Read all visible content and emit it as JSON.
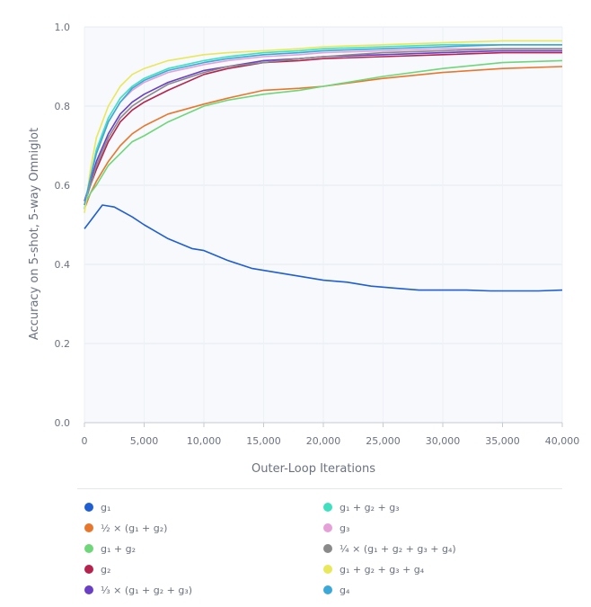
{
  "chart_data": {
    "type": "line",
    "xlabel": "Outer-Loop Iterations",
    "ylabel": "Accuracy on 5-shot, 5-way Omniglot",
    "xlim": [
      0,
      40000
    ],
    "ylim": [
      0.0,
      1.0
    ],
    "x_ticks": [
      "0",
      "5,000",
      "10,000",
      "15,000",
      "20,000",
      "25,000",
      "30,000",
      "35,000",
      "40,000"
    ],
    "y_ticks": [
      "0.0",
      "0.2",
      "0.4",
      "0.6",
      "0.8",
      "1.0"
    ],
    "grid": true,
    "legend_position": "below",
    "series": [
      {
        "name": "g₁",
        "color": "#1f5fd1",
        "x": [
          0,
          500,
          1500,
          2500,
          4000,
          5000,
          7000,
          9000,
          10000,
          12000,
          14000,
          16000,
          18000,
          20000,
          22000,
          24000,
          26000,
          28000,
          30000,
          32000,
          34000,
          36000,
          38000,
          40000
        ],
        "y": [
          0.49,
          0.51,
          0.55,
          0.545,
          0.52,
          0.5,
          0.465,
          0.44,
          0.435,
          0.41,
          0.39,
          0.38,
          0.37,
          0.36,
          0.355,
          0.345,
          0.34,
          0.335,
          0.335,
          0.335,
          0.333,
          0.333,
          0.333,
          0.335
        ]
      },
      {
        "name": "½ × (g₁ + g₂)",
        "color": "#e8772e",
        "x": [
          0,
          500,
          1000,
          2000,
          3000,
          4000,
          5000,
          7000,
          10000,
          12000,
          15000,
          18000,
          20000,
          25000,
          30000,
          35000,
          40000
        ],
        "y": [
          0.54,
          0.58,
          0.61,
          0.66,
          0.7,
          0.73,
          0.75,
          0.78,
          0.805,
          0.82,
          0.84,
          0.845,
          0.85,
          0.87,
          0.885,
          0.895,
          0.9
        ]
      },
      {
        "name": "g₁ + g₂",
        "color": "#6fd67a",
        "x": [
          0,
          500,
          1000,
          2000,
          3000,
          4000,
          5000,
          7000,
          10000,
          12000,
          15000,
          18000,
          20000,
          25000,
          30000,
          35000,
          40000
        ],
        "y": [
          0.55,
          0.58,
          0.6,
          0.65,
          0.68,
          0.71,
          0.725,
          0.76,
          0.8,
          0.815,
          0.83,
          0.84,
          0.85,
          0.875,
          0.895,
          0.91,
          0.915
        ]
      },
      {
        "name": "g₂",
        "color": "#b5244f",
        "x": [
          0,
          500,
          1000,
          2000,
          3000,
          4000,
          5000,
          7000,
          10000,
          12000,
          15000,
          18000,
          20000,
          25000,
          30000,
          35000,
          40000
        ],
        "y": [
          0.56,
          0.6,
          0.64,
          0.71,
          0.76,
          0.79,
          0.81,
          0.84,
          0.88,
          0.895,
          0.91,
          0.915,
          0.92,
          0.925,
          0.93,
          0.935,
          0.935
        ]
      },
      {
        "name": "⅓ × (g₁ + g₂ + g₃)",
        "color": "#6a3fc4",
        "x": [
          0,
          500,
          1000,
          2000,
          3000,
          4000,
          5000,
          7000,
          10000,
          12000,
          15000,
          18000,
          20000,
          25000,
          30000,
          35000,
          40000
        ],
        "y": [
          0.56,
          0.61,
          0.66,
          0.73,
          0.78,
          0.81,
          0.83,
          0.86,
          0.89,
          0.9,
          0.915,
          0.92,
          0.925,
          0.93,
          0.935,
          0.94,
          0.94
        ]
      },
      {
        "name": "g₁ + g₂ + g₃",
        "color": "#3ee0c0",
        "x": [
          0,
          500,
          1000,
          2000,
          3000,
          4000,
          5000,
          7000,
          10000,
          12000,
          15000,
          18000,
          20000,
          25000,
          30000,
          35000,
          40000
        ],
        "y": [
          0.54,
          0.62,
          0.69,
          0.77,
          0.82,
          0.85,
          0.87,
          0.895,
          0.915,
          0.925,
          0.935,
          0.94,
          0.945,
          0.95,
          0.955,
          0.955,
          0.955
        ]
      },
      {
        "name": "g₃",
        "color": "#e6a0d8",
        "x": [
          0,
          500,
          1000,
          2000,
          3000,
          4000,
          5000,
          7000,
          10000,
          12000,
          15000,
          18000,
          20000,
          25000,
          30000,
          35000,
          40000
        ],
        "y": [
          0.55,
          0.62,
          0.68,
          0.76,
          0.81,
          0.84,
          0.86,
          0.885,
          0.905,
          0.915,
          0.925,
          0.93,
          0.935,
          0.94,
          0.945,
          0.945,
          0.945
        ]
      },
      {
        "name": "¼ × (g₁ + g₂ + g₃ + g₄)",
        "color": "#8a8a8a",
        "x": [
          0,
          500,
          1000,
          2000,
          3000,
          4000,
          5000,
          7000,
          10000,
          12000,
          15000,
          18000,
          20000,
          25000,
          30000,
          35000,
          40000
        ],
        "y": [
          0.55,
          0.6,
          0.65,
          0.72,
          0.77,
          0.8,
          0.82,
          0.855,
          0.885,
          0.9,
          0.91,
          0.92,
          0.925,
          0.935,
          0.94,
          0.945,
          0.945
        ]
      },
      {
        "name": "g₁ + g₂ + g₃ + g₄",
        "color": "#e8e85a",
        "x": [
          0,
          500,
          1000,
          2000,
          3000,
          4000,
          5000,
          7000,
          10000,
          12000,
          15000,
          18000,
          20000,
          25000,
          30000,
          35000,
          40000
        ],
        "y": [
          0.53,
          0.64,
          0.72,
          0.8,
          0.85,
          0.88,
          0.895,
          0.915,
          0.93,
          0.935,
          0.94,
          0.945,
          0.95,
          0.955,
          0.96,
          0.965,
          0.965
        ]
      },
      {
        "name": "g₄",
        "color": "#3ba8d8",
        "x": [
          0,
          500,
          1000,
          2000,
          3000,
          4000,
          5000,
          7000,
          10000,
          12000,
          15000,
          18000,
          20000,
          25000,
          30000,
          35000,
          40000
        ],
        "y": [
          0.55,
          0.62,
          0.68,
          0.76,
          0.81,
          0.845,
          0.865,
          0.89,
          0.91,
          0.92,
          0.93,
          0.935,
          0.94,
          0.945,
          0.95,
          0.955,
          0.955
        ]
      }
    ]
  }
}
